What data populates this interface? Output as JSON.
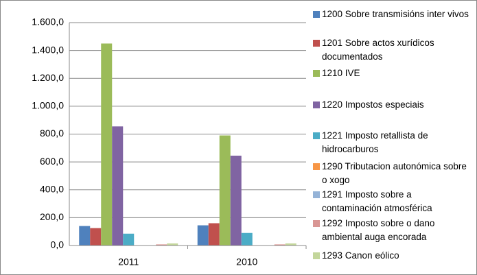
{
  "chart_data": {
    "type": "bar",
    "categories": [
      "2011",
      "2010"
    ],
    "series": [
      {
        "name": "1200 Sobre transmisións inter vivos",
        "color": "#4f81bd",
        "values": [
          140,
          145
        ]
      },
      {
        "name": "1201 Sobre actos xurídicos documentados",
        "color": "#c0504d",
        "values": [
          125,
          160
        ]
      },
      {
        "name": "1210 IVE",
        "color": "#9bbb59",
        "values": [
          1450,
          790
        ]
      },
      {
        "name": "1220 Impostos especiais",
        "color": "#8064a2",
        "values": [
          855,
          645
        ]
      },
      {
        "name": "1221 Imposto retallista de hidrocarburos",
        "color": "#4bacc6",
        "values": [
          85,
          90
        ]
      },
      {
        "name": "1290 Tributacion autonómica sobre o xogo",
        "color": "#f79646",
        "values": [
          1,
          1
        ]
      },
      {
        "name": "1291 Imposto sobre a contaminación atmosférica",
        "color": "#95b3d7",
        "values": [
          0,
          0
        ]
      },
      {
        "name": "1292 Imposto sobre o dano ambiental auga encorada",
        "color": "#d99694",
        "values": [
          8,
          8
        ]
      },
      {
        "name": "1293 Canon eólico",
        "color": "#c3d69b",
        "values": [
          15,
          15
        ]
      }
    ],
    "ylim": [
      0,
      1600
    ],
    "yticks": [
      {
        "value": 0,
        "label": "0,0"
      },
      {
        "value": 200,
        "label": "200,0"
      },
      {
        "value": 400,
        "label": "400,0"
      },
      {
        "value": 600,
        "label": "600,0"
      },
      {
        "value": 800,
        "label": "800,0"
      },
      {
        "value": 1000,
        "label": "1.000,0"
      },
      {
        "value": 1200,
        "label": "1.200,0"
      },
      {
        "value": 1400,
        "label": "1.400,0"
      },
      {
        "value": 1600,
        "label": "1.600,0"
      }
    ],
    "grid": true,
    "legend": "right"
  }
}
